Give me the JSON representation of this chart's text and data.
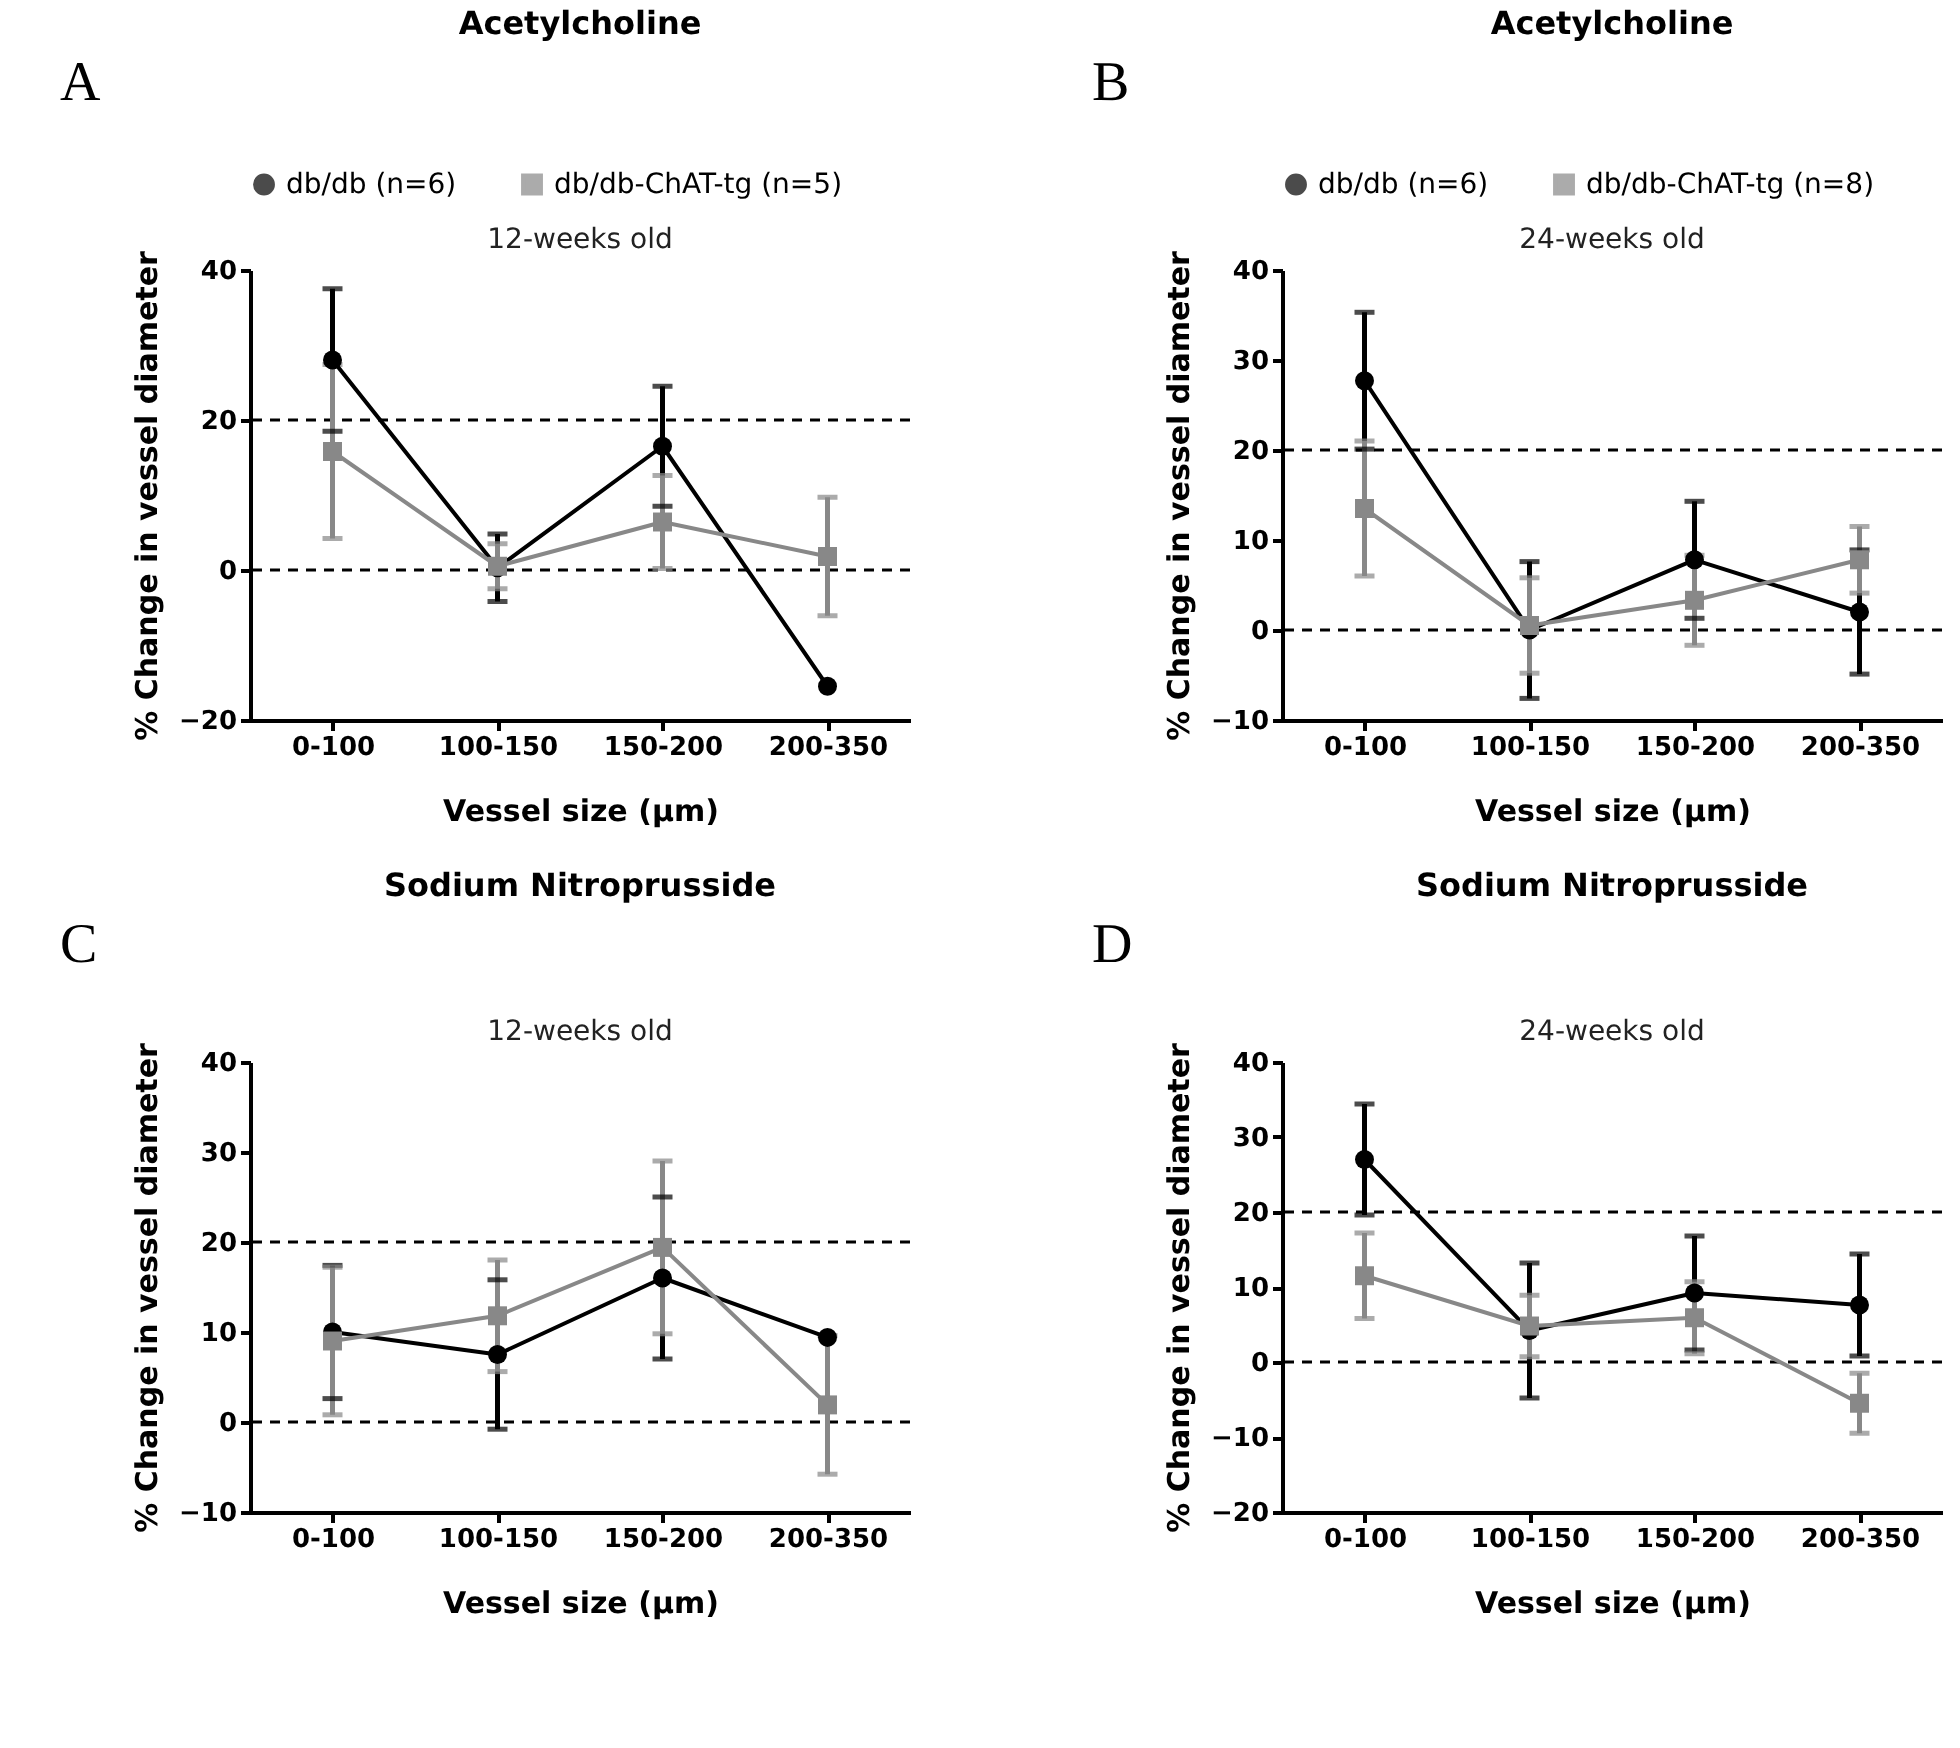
{
  "chart_data": [
    {
      "type": "line",
      "title": "Acetylcholine",
      "subtitle": "12-weeks old",
      "xlabel": "Vessel size (μm)",
      "ylabel": "% Change in vessel diameter",
      "annotations": [
        "A"
      ],
      "categories": [
        "0-100",
        "100-150",
        "150-200",
        "200-350"
      ],
      "ylim": [
        -20,
        40
      ],
      "yticks": [
        -20,
        0,
        20,
        40
      ],
      "grid": false,
      "legend": "top",
      "series": [
        {
          "name": "db/db (n=6)",
          "color": "#000000",
          "marker": "circle",
          "values": [
            28,
            0.3,
            16.5,
            -15.5
          ],
          "errors": [
            9.5,
            4.5,
            8,
            null
          ]
        },
        {
          "name": "db/db-ChAT-tg (n=5)",
          "color": "#888888",
          "marker": "square",
          "values": [
            15.8,
            0.5,
            6.4,
            1.8
          ],
          "errors": [
            11.6,
            3,
            6.2,
            7.9
          ]
        }
      ],
      "ref_lines": [
        {
          "axis": "y",
          "value": 0,
          "line_style": "dashed",
          "color": "#000000"
        },
        {
          "axis": "y",
          "value": 20,
          "line_style": "dashed",
          "color": "#000000"
        }
      ]
    },
    {
      "type": "line",
      "title": "Acetylcholine",
      "subtitle": "24-weeks old",
      "xlabel": "Vessel size (μm)",
      "ylabel": "% Change in vessel diameter",
      "annotations": [
        "B"
      ],
      "categories": [
        "0-100",
        "100-150",
        "150-200",
        "200-350"
      ],
      "ylim": [
        -10,
        40
      ],
      "yticks": [
        -10,
        0,
        10,
        20,
        30,
        40
      ],
      "grid": false,
      "legend": "top",
      "series": [
        {
          "name": "db/db (n=6)",
          "color": "#000000",
          "marker": "circle",
          "values": [
            27.7,
            0,
            7.8,
            2
          ],
          "errors": [
            7.6,
            7.6,
            6.5,
            6.9
          ]
        },
        {
          "name": "db/db-ChAT-tg (n=8)",
          "color": "#888888",
          "marker": "square",
          "values": [
            13.5,
            0.5,
            3.3,
            7.8
          ],
          "errors": [
            7.5,
            5.3,
            5,
            3.7
          ]
        }
      ],
      "ref_lines": [
        {
          "axis": "y",
          "value": 0,
          "line_style": "dashed",
          "color": "#000000"
        },
        {
          "axis": "y",
          "value": 20,
          "line_style": "dashed",
          "color": "#000000"
        }
      ]
    },
    {
      "type": "line",
      "title": "Sodium Nitroprusside",
      "subtitle": "12-weeks old",
      "xlabel": "Vessel size (μm)",
      "ylabel": "% Change in vessel diameter",
      "annotations": [
        "C"
      ],
      "categories": [
        "0-100",
        "100-150",
        "150-200",
        "200-350"
      ],
      "ylim": [
        -10,
        40
      ],
      "yticks": [
        -10,
        0,
        10,
        20,
        30,
        40
      ],
      "grid": false,
      "series": [
        {
          "color": "#000000",
          "marker": "circle",
          "values": [
            10,
            7.5,
            16,
            9.4
          ],
          "errors": [
            7.4,
            8.3,
            9,
            null
          ]
        },
        {
          "color": "#888888",
          "marker": "square",
          "values": [
            9,
            11.8,
            19.4,
            1.9
          ],
          "errors": [
            8.2,
            6.2,
            9.6,
            7.7
          ]
        }
      ],
      "ref_lines": [
        {
          "axis": "y",
          "value": 0,
          "line_style": "dashed",
          "color": "#000000"
        },
        {
          "axis": "y",
          "value": 20,
          "line_style": "dashed",
          "color": "#000000"
        }
      ]
    },
    {
      "type": "line",
      "title": "Sodium Nitroprusside",
      "subtitle": "24-weeks old",
      "xlabel": "Vessel size (μm)",
      "ylabel": "% Change in vessel diameter",
      "annotations": [
        "D"
      ],
      "categories": [
        "0-100",
        "100-150",
        "150-200",
        "200-350"
      ],
      "ylim": [
        -20,
        40
      ],
      "yticks": [
        -20,
        -10,
        0,
        10,
        20,
        30,
        40
      ],
      "grid": false,
      "series": [
        {
          "color": "#000000",
          "marker": "circle",
          "values": [
            27,
            4.2,
            9.2,
            7.6
          ],
          "errors": [
            7.4,
            9,
            7.6,
            6.8
          ]
        },
        {
          "color": "#888888",
          "marker": "square",
          "values": [
            11.5,
            4.8,
            5.9,
            -5.5
          ],
          "errors": [
            5.7,
            4.1,
            4.8,
            4
          ]
        }
      ],
      "ref_lines": [
        {
          "axis": "y",
          "value": 0,
          "line_style": "dashed",
          "color": "#000000"
        },
        {
          "axis": "y",
          "value": 20,
          "line_style": "dashed",
          "color": "#000000"
        }
      ]
    }
  ]
}
